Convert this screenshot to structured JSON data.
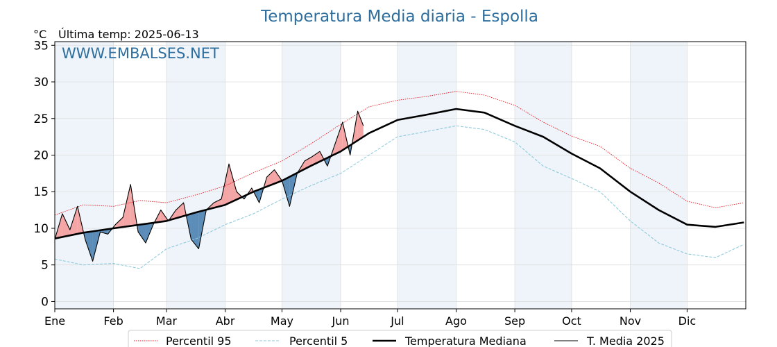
{
  "title": "Temperatura Media diaria - Espolla",
  "unit_label": "°C",
  "last_temp_label": "Última temp: 2025-06-13",
  "watermark": "WWW.EMBALSES.NET",
  "colors": {
    "title": "#2e6e9e",
    "watermark": "#2e6e9e",
    "p95": "#e8141e",
    "p5": "#8fc9dc",
    "median": "#000000",
    "series2025": "#000000",
    "fill_above": "#f4a6a6",
    "fill_below": "#5b8db8",
    "month_band": "#eef4fa",
    "grid": "#dddddd"
  },
  "chart_data": {
    "type": "line",
    "title": "Temperatura Media diaria - Espolla",
    "ylabel": "°C",
    "ylim": [
      -1,
      35.5
    ],
    "xlim": [
      0,
      365
    ],
    "yticks": [
      0,
      5,
      10,
      15,
      20,
      25,
      30,
      35
    ],
    "month_labels": [
      "Ene",
      "Feb",
      "Mar",
      "Abr",
      "May",
      "Jun",
      "Jul",
      "Ago",
      "Sep",
      "Oct",
      "Nov",
      "Dic"
    ],
    "month_starts": [
      0,
      31,
      59,
      90,
      120,
      151,
      181,
      212,
      243,
      273,
      304,
      334
    ],
    "shaded_months": [
      0,
      2,
      4,
      6,
      8,
      10
    ],
    "grid": true,
    "legend_position": "bottom",
    "series": [
      {
        "name": "Percentil 95",
        "style": "dotted-red",
        "x": [
          0,
          15,
          31,
          45,
          59,
          75,
          90,
          105,
          120,
          135,
          151,
          166,
          181,
          196,
          212,
          227,
          243,
          258,
          273,
          288,
          304,
          319,
          334,
          349,
          364
        ],
        "values": [
          11.8,
          13.2,
          13.0,
          13.8,
          13.5,
          14.6,
          15.8,
          17.6,
          19.2,
          21.5,
          24.2,
          26.6,
          27.5,
          28.0,
          28.7,
          28.2,
          26.8,
          24.5,
          22.6,
          21.2,
          18.2,
          16.2,
          13.7,
          12.8,
          13.5
        ]
      },
      {
        "name": "Percentil 5",
        "style": "dashed-lightblue",
        "x": [
          0,
          15,
          31,
          45,
          59,
          75,
          90,
          105,
          120,
          135,
          151,
          166,
          181,
          196,
          212,
          227,
          243,
          258,
          273,
          288,
          304,
          319,
          334,
          349,
          364
        ],
        "values": [
          5.8,
          5.0,
          5.2,
          4.5,
          7.2,
          8.6,
          10.5,
          12.0,
          14.0,
          15.8,
          17.5,
          20.0,
          22.5,
          23.2,
          24.0,
          23.5,
          21.8,
          18.5,
          16.8,
          15.0,
          11.0,
          8.0,
          6.5,
          6.0,
          7.8
        ]
      },
      {
        "name": "Temperatura Mediana",
        "style": "thick-black",
        "x": [
          0,
          15,
          31,
          45,
          59,
          75,
          90,
          105,
          120,
          135,
          151,
          166,
          181,
          196,
          212,
          227,
          243,
          258,
          273,
          288,
          304,
          319,
          334,
          349,
          364
        ],
        "values": [
          8.6,
          9.4,
          10.0,
          10.5,
          11.0,
          12.2,
          13.2,
          15.0,
          16.5,
          18.5,
          20.5,
          23.0,
          24.8,
          25.5,
          26.3,
          25.8,
          24.0,
          22.5,
          20.2,
          18.2,
          15.0,
          12.5,
          10.5,
          10.2,
          10.8
        ]
      },
      {
        "name": "T. Media 2025",
        "style": "thin-black",
        "x": [
          0,
          4,
          8,
          12,
          16,
          20,
          24,
          28,
          32,
          36,
          40,
          44,
          48,
          52,
          56,
          60,
          64,
          68,
          72,
          76,
          80,
          84,
          88,
          92,
          96,
          100,
          104,
          108,
          112,
          116,
          120,
          124,
          128,
          132,
          136,
          140,
          144,
          148,
          152,
          156,
          160,
          163
        ],
        "values": [
          8.5,
          12.0,
          9.8,
          13.0,
          8.5,
          5.5,
          9.5,
          9.2,
          10.5,
          11.5,
          16.0,
          9.5,
          8.0,
          10.5,
          12.5,
          11.0,
          12.5,
          13.5,
          8.5,
          7.2,
          12.5,
          13.5,
          14.0,
          18.8,
          15.0,
          14.0,
          15.5,
          13.5,
          17.0,
          18.0,
          16.5,
          13.0,
          17.5,
          19.2,
          19.8,
          20.5,
          18.5,
          21.5,
          24.5,
          20.0,
          26.0,
          24.0
        ]
      }
    ]
  },
  "legend": [
    {
      "key": "p95",
      "label": "Percentil 95"
    },
    {
      "key": "p5",
      "label": "Percentil 5"
    },
    {
      "key": "median",
      "label": "Temperatura Mediana"
    },
    {
      "key": "series2025",
      "label": "T. Media 2025"
    }
  ]
}
